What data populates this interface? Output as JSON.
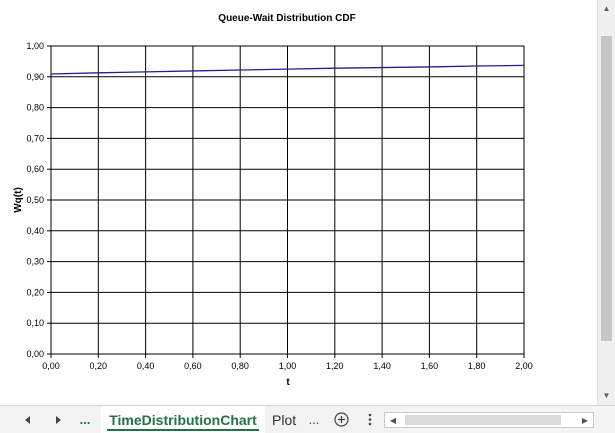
{
  "chart_data": {
    "type": "line",
    "title": "Queue-Wait Distribution CDF",
    "xlabel": "t",
    "ylabel": "Wq(t)",
    "xlim": [
      0,
      2
    ],
    "ylim": [
      0,
      1
    ],
    "grid": true,
    "legend": "none",
    "x_ticks": [
      "0,00",
      "0,20",
      "0,40",
      "0,60",
      "0,80",
      "1,00",
      "1,20",
      "1,40",
      "1,60",
      "1,80",
      "2,00"
    ],
    "y_ticks": [
      "0,00",
      "0,10",
      "0,20",
      "0,30",
      "0,40",
      "0,50",
      "0,60",
      "0,70",
      "0,80",
      "0,90",
      "1,00"
    ],
    "series": [
      {
        "color": "#1f1f8f",
        "x": [
          0.0,
          0.2,
          0.4,
          0.6,
          0.8,
          1.0,
          1.2,
          1.4,
          1.6,
          1.8,
          2.0
        ],
        "y": [
          0.909,
          0.913,
          0.916,
          0.919,
          0.922,
          0.925,
          0.928,
          0.93,
          0.932,
          0.935,
          0.937
        ]
      }
    ]
  },
  "sheet_tabs": {
    "active": "TimeDistributionChart",
    "next": "Plot",
    "overflow_left": "...",
    "overflow_right": "...",
    "add_icon": "plus-circle-icon",
    "more_icon": "vertical-ellipsis-icon"
  }
}
